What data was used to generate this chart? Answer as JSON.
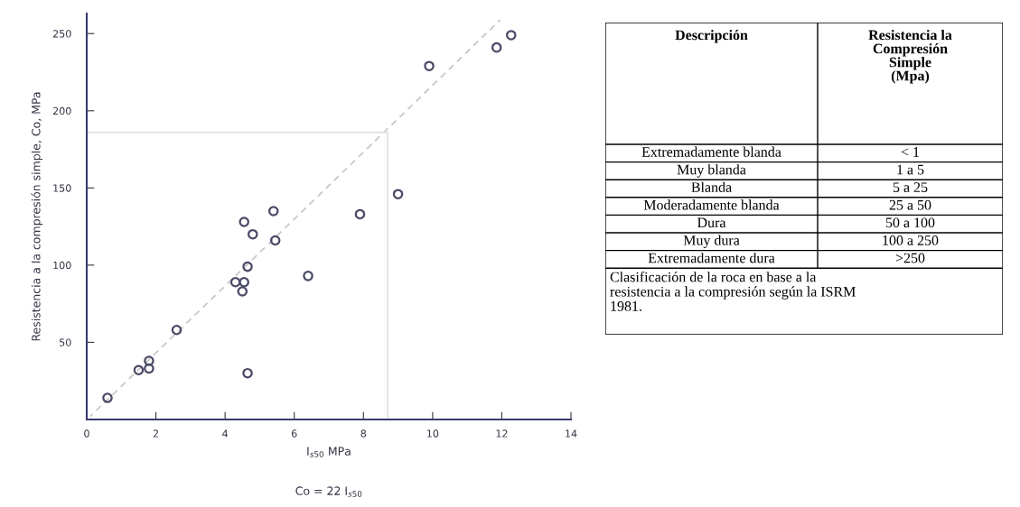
{
  "chart_data": [
    {
      "type": "scatter",
      "xlabel": "I$_{s50}$ MPa",
      "ylabel": "Resistencia a la compresión simple, Co, MPa",
      "annotations": [
        "Co = 22 I$_{s50}$"
      ],
      "x": [
        0.6,
        1.5,
        1.8,
        1.8,
        2.6,
        4.3,
        4.5,
        4.55,
        4.65,
        4.65,
        4.55,
        4.8,
        5.4,
        5.45,
        6.4,
        7.9,
        9.0,
        9.9,
        11.85,
        12.27
      ],
      "series": [
        {
          "color": "#4a4a66",
          "marker": "circle",
          "values": [
            14,
            32,
            33,
            38,
            58,
            89,
            83,
            89,
            99,
            30,
            128,
            120,
            135,
            116,
            93,
            133,
            146,
            229,
            241,
            249
          ]
        },
        {
          "type": "line",
          "line_style": "dashed",
          "color": "#c8c8c8",
          "x": [
            0.1,
            11.96
          ],
          "values": [
            2,
            259
          ]
        },
        {
          "type": "line",
          "line_style": "solid",
          "color": "#e4e4e4",
          "x": [
            0,
            8.7,
            8.7
          ],
          "values": [
            186,
            186,
            0
          ]
        }
      ],
      "xlim": [
        0,
        14
      ],
      "ylim": [
        0,
        263
      ],
      "xticks": [
        0,
        2,
        4,
        6,
        8,
        10,
        12,
        14
      ],
      "yticks": [
        50,
        100,
        150,
        200,
        250
      ],
      "grid": false
    },
    {
      "type": "other",
      "annotations": [
        "Descripción",
        "Resistencia la\nCompresión\nSimple\n(Mpa)",
        "Extremadamente blanda",
        "< 1",
        "Muy blanda",
        "1 a 5",
        "Blanda",
        "5 a 25",
        "Moderadamente blanda",
        "25 a 50",
        "Dura",
        "50 a 100",
        "Muy dura",
        "100 a 250",
        "Extremadamente dura",
        ">250",
        "Clasificación de la roca en base a la\nresistencia a la compresión según la ISRM\n1981."
      ]
    }
  ]
}
